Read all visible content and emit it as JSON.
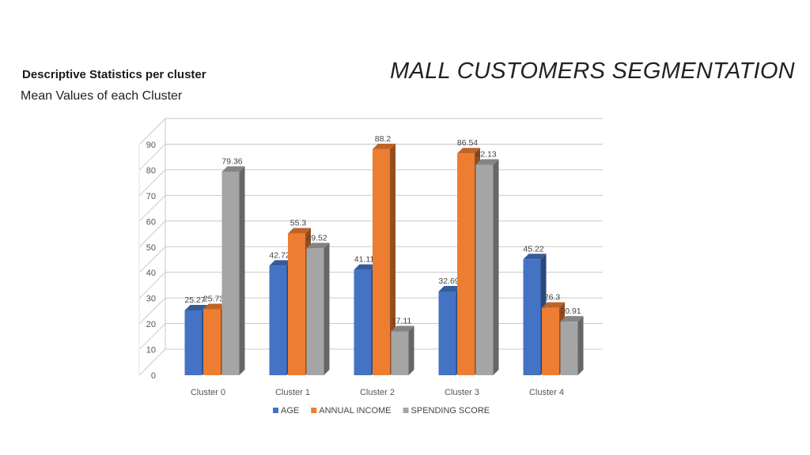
{
  "slide": {
    "heading": "Descriptive Statistics per cluster",
    "subheading": "Mean Values of each Cluster",
    "title": "MALL CUSTOMERS SEGMENTATION"
  },
  "chart_data": {
    "type": "bar",
    "style": "3d-clustered-column",
    "categories": [
      "Cluster 0",
      "Cluster 1",
      "Cluster 2",
      "Cluster 3",
      "Cluster 4"
    ],
    "series": [
      {
        "name": "AGE",
        "color": "#4472C4",
        "values": [
          25.27,
          42.72,
          41.11,
          32.69,
          45.22
        ]
      },
      {
        "name": "ANNUAL INCOME",
        "color": "#ED7D31",
        "values": [
          25.73,
          55.3,
          88.2,
          86.54,
          26.3
        ]
      },
      {
        "name": "SPENDING SCORE",
        "color": "#A5A5A5",
        "values": [
          79.36,
          49.52,
          17.11,
          82.13,
          20.91
        ]
      }
    ],
    "yticks": [
      0,
      10,
      20,
      30,
      40,
      50,
      60,
      70,
      80,
      90
    ],
    "ylim": [
      0,
      90
    ],
    "grid": true,
    "legend_position": "bottom"
  }
}
